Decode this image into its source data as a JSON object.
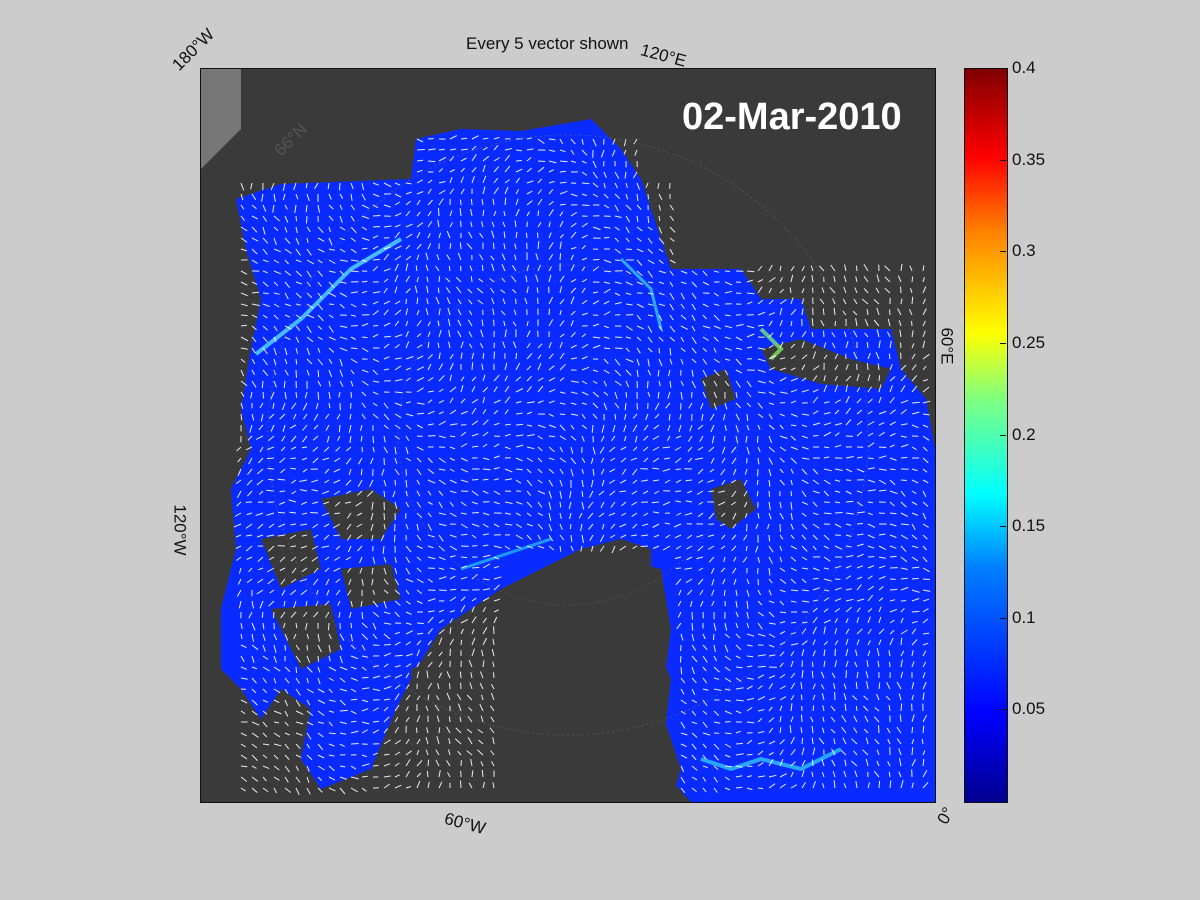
{
  "title": "Every 5 vector shown",
  "date_label": "02-Mar-2010",
  "map_labels": {
    "lon_180w": "180°W",
    "lon_120e": "120°E",
    "lon_60e": "60°E",
    "lon_120w": "120°W",
    "lon_60w": "60°W",
    "lon_0": "0°",
    "lat_66n": "66°N"
  },
  "colorbar": {
    "min": 0,
    "max": 0.4,
    "ticks": [
      "0.4",
      "0.35",
      "0.3",
      "0.25",
      "0.2",
      "0.15",
      "0.1",
      "0.05"
    ],
    "colormap": "jet"
  },
  "colors": {
    "background": "#cccccc",
    "land": "#3a3a3a",
    "ice_low": "#0a2bff",
    "vectors": "#ffffff"
  }
}
